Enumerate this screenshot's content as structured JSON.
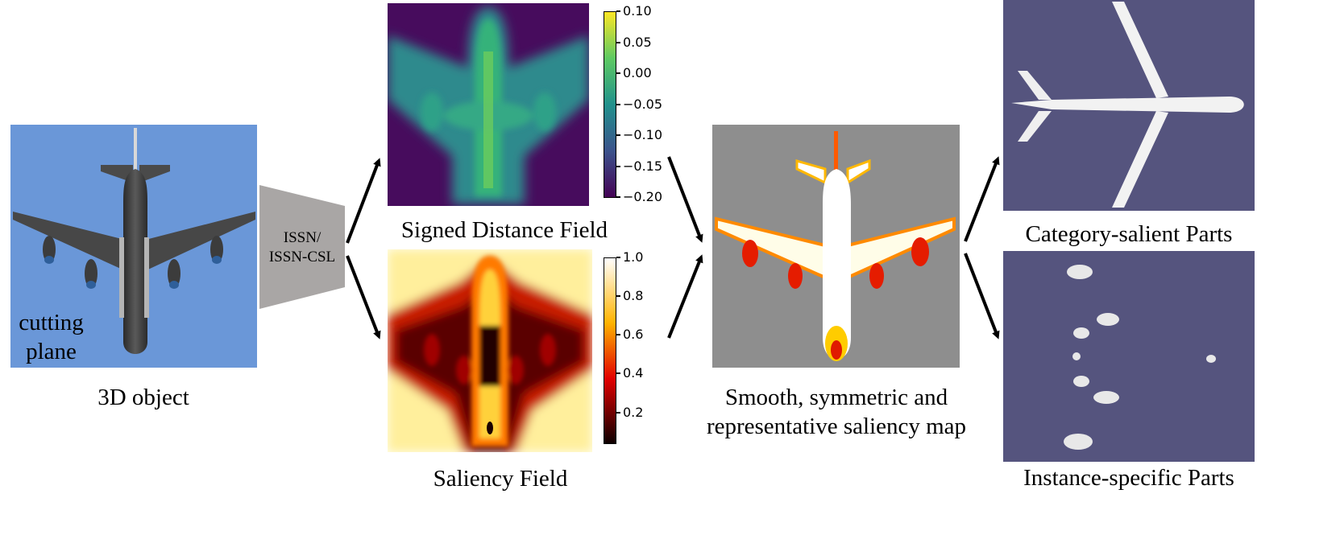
{
  "panels": {
    "object": {
      "caption": "3D object",
      "overlay_line1": "cutting",
      "overlay_line2": "plane",
      "bg_color": "#6a97d8"
    },
    "network": {
      "line1": "ISSN/",
      "line2": "ISSN-CSL"
    },
    "sdf": {
      "caption": "Signed Distance Field",
      "colorbar_ticks": [
        "0.10",
        "0.05",
        "0.00",
        "−0.05",
        "−0.10",
        "−0.15",
        "−0.20"
      ],
      "colormap": "viridis"
    },
    "saliency": {
      "caption": "Saliency Field",
      "colorbar_ticks": [
        "1.0",
        "0.8",
        "0.6",
        "0.4",
        "0.2"
      ],
      "colormap": "hot"
    },
    "map": {
      "caption_line1": "Smooth, symmetric and",
      "caption_line2": "representative saliency map",
      "bg_color": "#8e8e8e"
    },
    "category": {
      "caption": "Category-salient Parts",
      "bg_color": "#55547e"
    },
    "instance": {
      "caption": "Instance-specific Parts",
      "bg_color": "#55547e"
    }
  }
}
